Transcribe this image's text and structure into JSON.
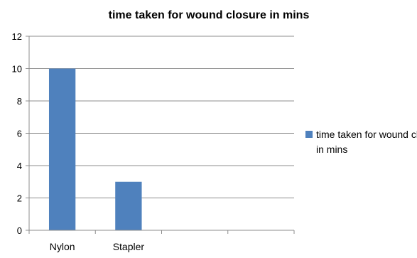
{
  "chart_data": {
    "type": "bar",
    "title": "time taken for wound closure in mins",
    "categories": [
      "Nylon",
      "Stapler",
      "",
      ""
    ],
    "series": [
      {
        "name": "time taken for wound closure in mins",
        "values": [
          10,
          3,
          null,
          null
        ],
        "color": "#4F81BD"
      }
    ],
    "ylim": [
      0,
      12
    ],
    "yticks": [
      0,
      2,
      4,
      6,
      8,
      10,
      12
    ],
    "grid": true,
    "legend_position": "right",
    "xlabel": "",
    "ylabel": ""
  }
}
